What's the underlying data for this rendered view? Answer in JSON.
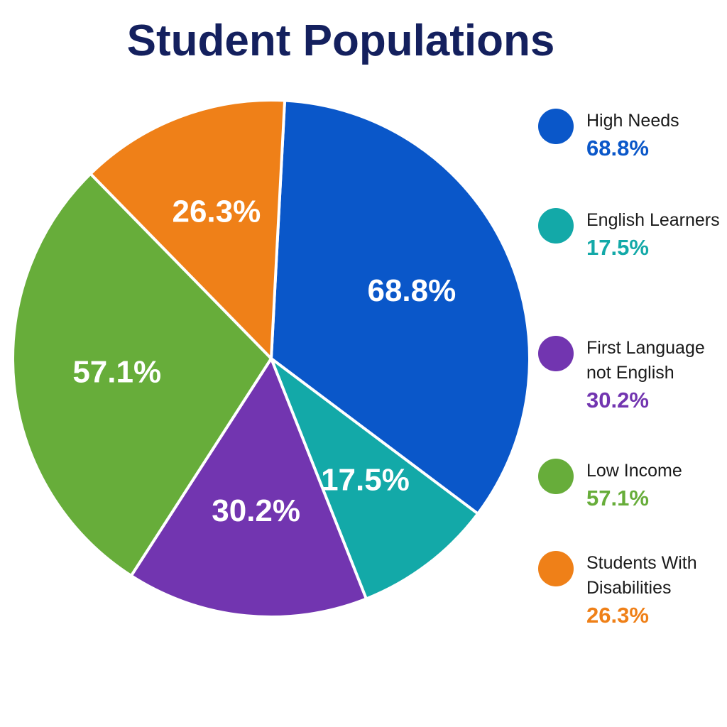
{
  "chart_data": {
    "type": "pie",
    "title": "Student Populations",
    "categories": [
      "High Needs",
      "English Learners",
      "First Language not English",
      "Low Income",
      "Students With Disabilities"
    ],
    "values": [
      68.8,
      17.5,
      30.2,
      57.1,
      26.3
    ],
    "value_labels": [
      "68.8%",
      "17.5%",
      "30.2%",
      "57.1%",
      "26.3%"
    ],
    "colors": [
      "#0a57c9",
      "#13a9a8",
      "#7235b0",
      "#67ad3a",
      "#ef8018"
    ],
    "legend": "right"
  }
}
